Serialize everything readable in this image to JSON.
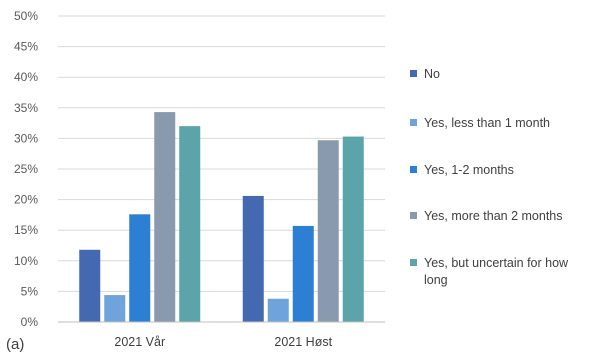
{
  "panel_label": "(a)",
  "chart_data": {
    "type": "bar",
    "categories": [
      "2021 Vår",
      "2021 Høst"
    ],
    "series": [
      {
        "name": "No",
        "values": [
          11.8,
          20.6
        ],
        "color": "#4569b1"
      },
      {
        "name": "Yes, less than 1 month",
        "values": [
          4.4,
          3.8
        ],
        "color": "#6fa3dc"
      },
      {
        "name": "Yes, 1-2 months",
        "values": [
          17.6,
          15.7
        ],
        "color": "#2d7fd3"
      },
      {
        "name": "Yes, more than 2 months",
        "values": [
          34.3,
          29.7
        ],
        "color": "#8a9aae"
      },
      {
        "name": "Yes, but uncertain for how long",
        "values": [
          32.0,
          30.3
        ],
        "color": "#5ba4a9"
      }
    ],
    "ylim": [
      0,
      50
    ],
    "y_ticks": [
      "0%",
      "5%",
      "10%",
      "15%",
      "20%",
      "25%",
      "30%",
      "35%",
      "40%",
      "45%",
      "50%"
    ],
    "grid": true,
    "legend_position": "right",
    "xlabel": "",
    "ylabel": ""
  }
}
